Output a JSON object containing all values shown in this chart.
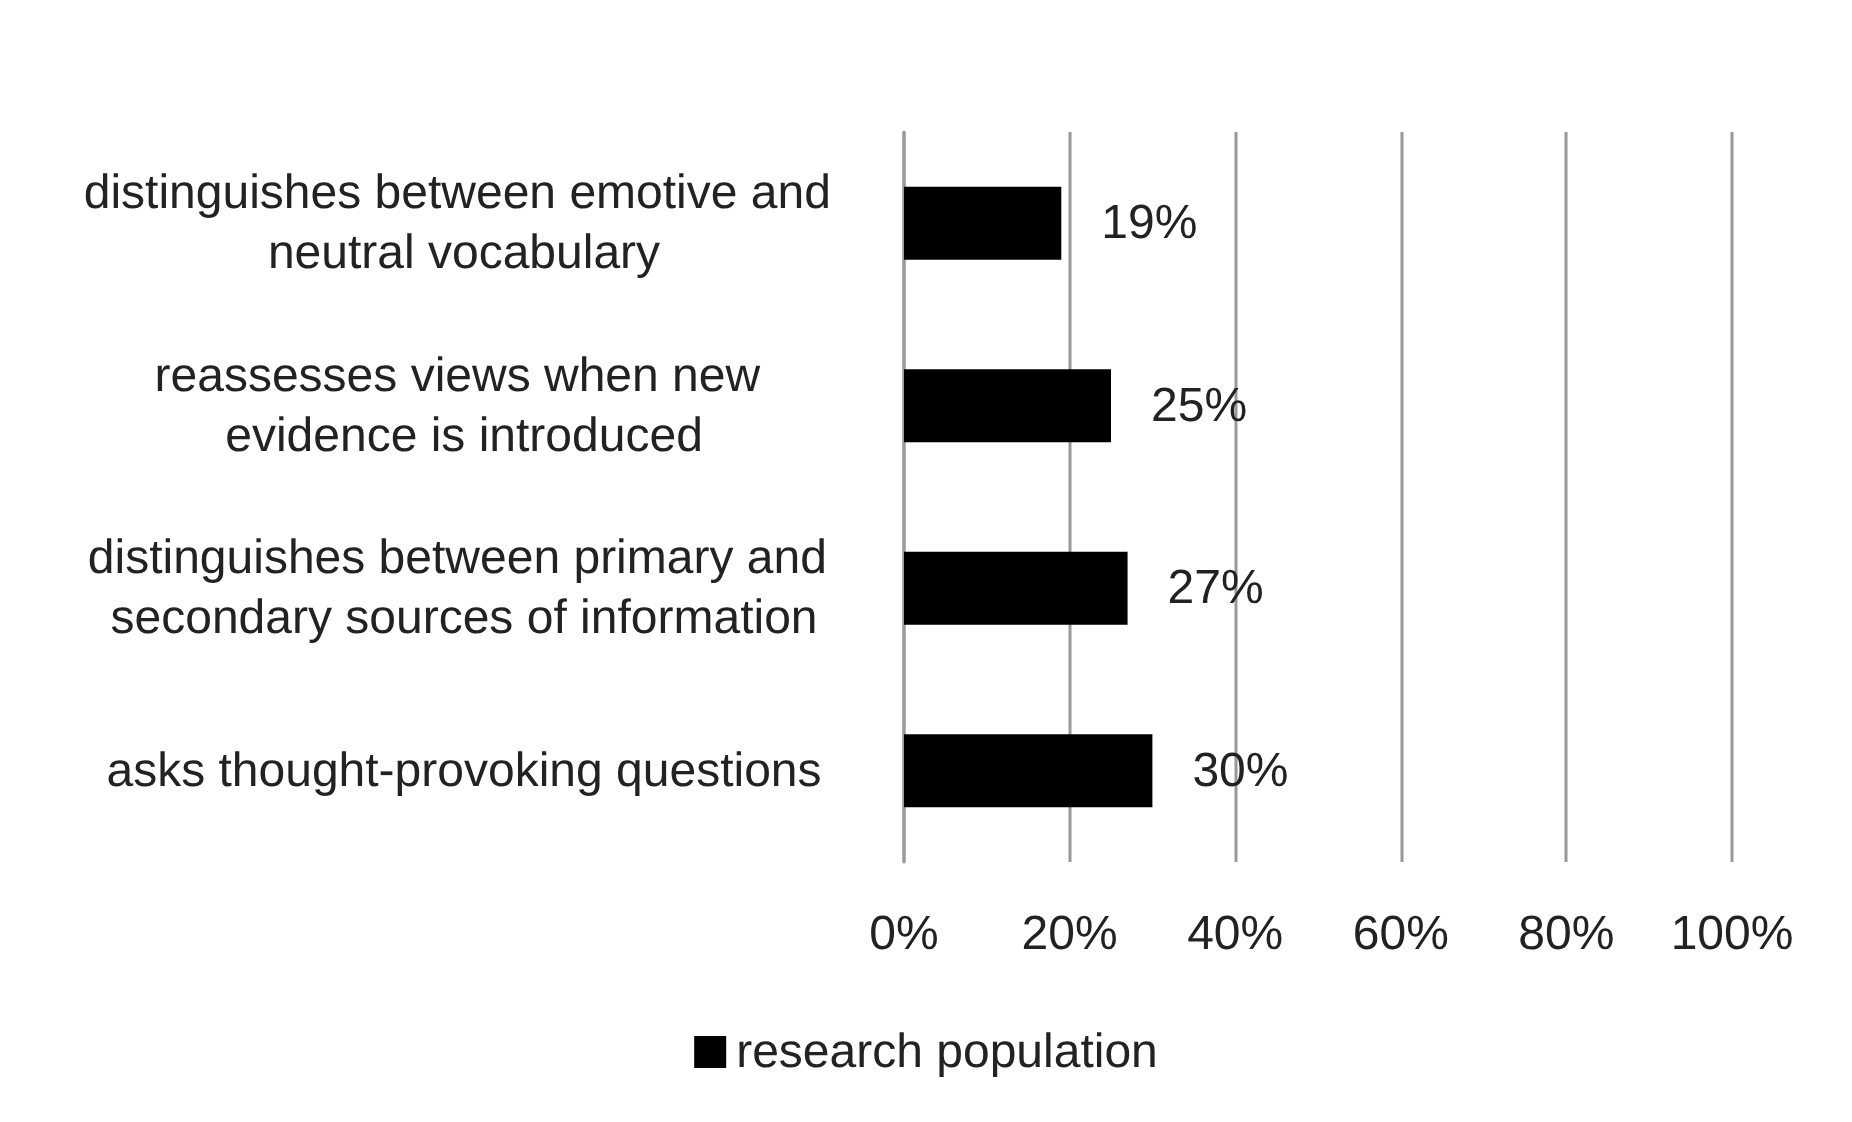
{
  "chart_data": {
    "type": "bar",
    "orientation": "horizontal",
    "categories": [
      "distinguishes between emotive and neutral vocabulary",
      "reassesses views when new evidence is introduced",
      "distinguishes between primary and secondary sources of information",
      "asks thought-provoking questions"
    ],
    "series": [
      {
        "name": "research population",
        "color": "#000000",
        "values": [
          19,
          25,
          27,
          30
        ],
        "value_labels": [
          "19%",
          "25%",
          "27%",
          "30%"
        ]
      }
    ],
    "xlim": [
      0,
      100
    ],
    "xticks": [
      {
        "value": 0,
        "label": "0%"
      },
      {
        "value": 20,
        "label": "20%"
      },
      {
        "value": 40,
        "label": "40%"
      },
      {
        "value": 60,
        "label": "60%"
      },
      {
        "value": 80,
        "label": "80%"
      },
      {
        "value": 100,
        "label": "100%"
      }
    ],
    "grid": "x",
    "legend": "bottom"
  }
}
